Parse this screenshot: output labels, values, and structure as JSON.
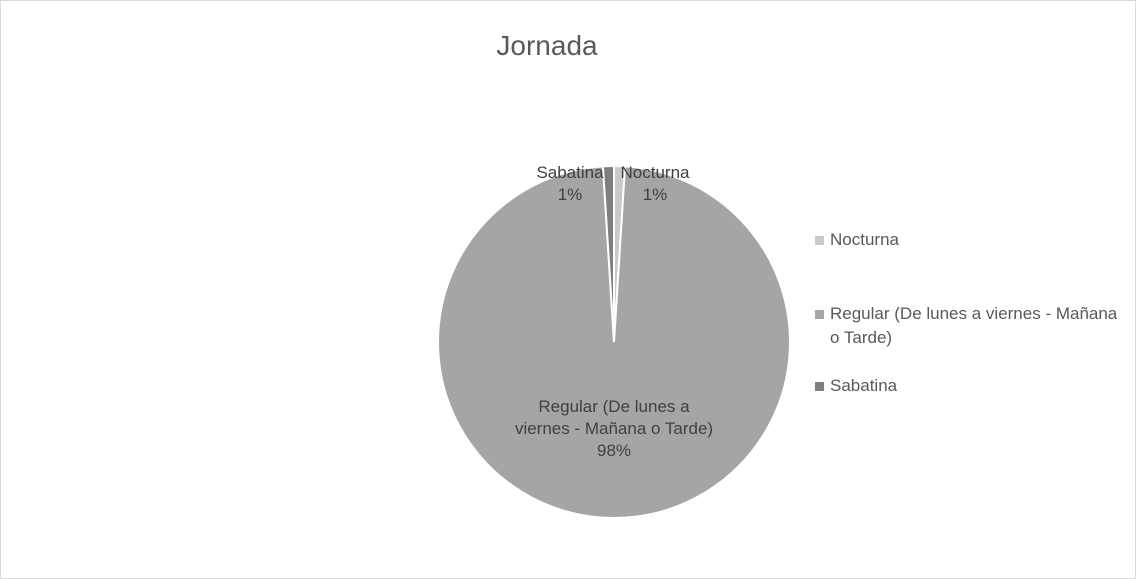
{
  "chart_data": {
    "type": "pie",
    "title": "Jornada",
    "categories": [
      "Nocturna",
      "Regular (De lunes a viernes - Mañana o Tarde)",
      "Sabatina"
    ],
    "values": [
      1,
      98,
      1
    ],
    "value_labels": [
      "1%",
      "98%",
      "1%"
    ],
    "colors": [
      "#c9c9c9",
      "#a5a5a5",
      "#7f7f7f"
    ],
    "legend": "right"
  }
}
